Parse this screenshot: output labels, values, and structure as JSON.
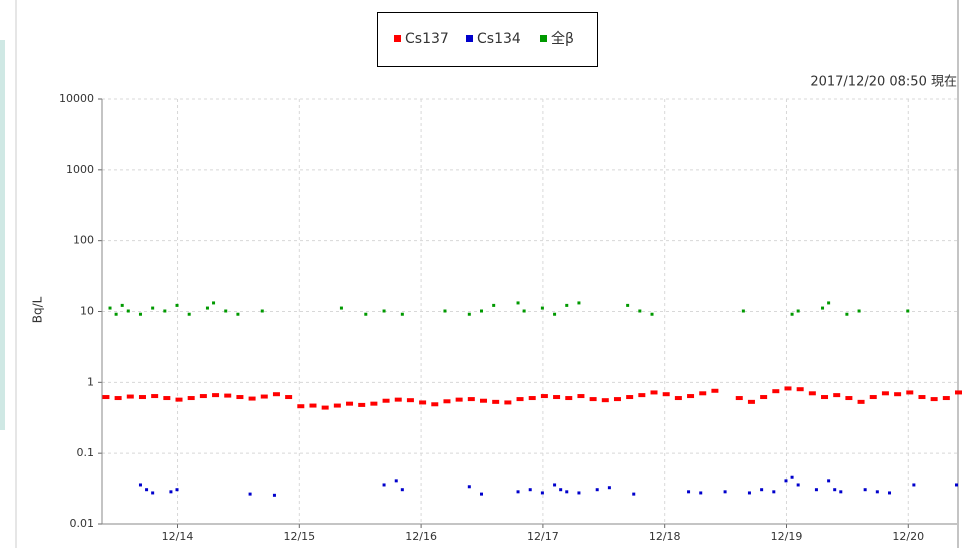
{
  "chart_data": {
    "type": "scatter",
    "annotation": "2017/12/20 08:50 現在",
    "y_label": "Bq/L",
    "log_y": true,
    "grid": true,
    "xlim": [
      13.38,
      20.4
    ],
    "ylim": [
      0.01,
      10000
    ],
    "xticks": [
      {
        "value": 14,
        "label": "12/14"
      },
      {
        "value": 15,
        "label": "12/15"
      },
      {
        "value": 16,
        "label": "12/16"
      },
      {
        "value": 17,
        "label": "12/17"
      },
      {
        "value": 18,
        "label": "12/18"
      },
      {
        "value": 19,
        "label": "12/19"
      },
      {
        "value": 20,
        "label": "12/20"
      }
    ],
    "yticks": [
      0.01,
      0.1,
      1,
      10,
      100,
      1000,
      10000
    ],
    "series": [
      {
        "name": "Cs137",
        "color": "#ff0000",
        "x": [
          13.4,
          13.5,
          13.6,
          13.7,
          13.8,
          13.9,
          14.0,
          14.1,
          14.2,
          14.3,
          14.4,
          14.5,
          14.6,
          14.7,
          14.8,
          14.9,
          15.0,
          15.1,
          15.2,
          15.3,
          15.4,
          15.5,
          15.6,
          15.7,
          15.8,
          15.9,
          16.0,
          16.1,
          16.2,
          16.3,
          16.4,
          16.5,
          16.6,
          16.7,
          16.8,
          16.9,
          17.0,
          17.1,
          17.2,
          17.3,
          17.4,
          17.5,
          17.6,
          17.7,
          17.8,
          17.9,
          18.0,
          18.1,
          18.2,
          18.3,
          18.4,
          18.5,
          18.6,
          18.7,
          18.8,
          18.9,
          19.0,
          19.1,
          19.2,
          19.3,
          19.4,
          19.5,
          19.6,
          19.7,
          19.8,
          19.9,
          20.0,
          20.1,
          20.2,
          20.3,
          20.4
        ],
        "values": [
          0.62,
          0.6,
          0.63,
          0.62,
          0.64,
          0.6,
          0.57,
          0.6,
          0.64,
          0.66,
          0.65,
          0.62,
          0.59,
          0.63,
          0.68,
          0.62,
          0.46,
          0.47,
          0.44,
          0.47,
          0.5,
          0.48,
          0.5,
          0.55,
          0.57,
          0.56,
          0.52,
          0.49,
          0.54,
          0.57,
          0.58,
          0.55,
          0.53,
          0.52,
          0.58,
          0.6,
          0.64,
          0.62,
          0.6,
          0.64,
          0.58,
          0.56,
          0.58,
          0.62,
          0.66,
          0.72,
          0.68,
          0.6,
          0.64,
          0.7,
          0.76,
          null,
          0.6,
          0.53,
          0.62,
          0.75,
          0.82,
          0.8,
          0.7,
          0.62,
          0.66,
          0.6,
          0.53,
          0.62,
          0.7,
          0.68,
          0.72,
          0.62,
          0.58,
          0.6,
          0.72
        ]
      },
      {
        "name": "Cs134",
        "color": "#0000cc",
        "x": [
          13.7,
          13.75,
          13.8,
          13.95,
          14.0,
          14.6,
          14.8,
          15.7,
          15.8,
          15.85,
          16.4,
          16.5,
          16.8,
          16.9,
          17.0,
          17.1,
          17.15,
          17.2,
          17.3,
          17.45,
          17.55,
          17.75,
          18.2,
          18.3,
          18.5,
          18.7,
          18.8,
          18.9,
          19.0,
          19.05,
          19.1,
          19.25,
          19.35,
          19.4,
          19.45,
          19.65,
          19.75,
          19.85,
          20.05,
          20.4
        ],
        "values": [
          0.035,
          0.03,
          0.027,
          0.028,
          0.03,
          0.026,
          0.025,
          0.035,
          0.04,
          0.03,
          0.033,
          0.026,
          0.028,
          0.03,
          0.027,
          0.035,
          0.03,
          0.028,
          0.027,
          0.03,
          0.032,
          0.026,
          0.028,
          0.027,
          0.028,
          0.027,
          0.03,
          0.028,
          0.04,
          0.045,
          0.035,
          0.03,
          0.04,
          0.03,
          0.028,
          0.03,
          0.028,
          0.027,
          0.035,
          0.035
        ]
      },
      {
        "name": "全β",
        "color": "#009900",
        "x": [
          13.45,
          13.5,
          13.55,
          13.6,
          13.7,
          13.8,
          13.9,
          14.0,
          14.1,
          14.25,
          14.3,
          14.4,
          14.5,
          14.7,
          15.35,
          15.55,
          15.7,
          15.85,
          16.2,
          16.4,
          16.5,
          16.6,
          16.8,
          16.85,
          17.0,
          17.1,
          17.2,
          17.3,
          17.7,
          17.8,
          17.9,
          18.65,
          19.05,
          19.1,
          19.3,
          19.35,
          19.5,
          19.6,
          20.0
        ],
        "values": [
          11,
          9,
          12,
          10,
          9,
          11,
          10,
          12,
          9,
          11,
          13,
          10,
          9,
          10,
          11,
          9,
          10,
          9,
          10,
          9,
          10,
          12,
          13,
          10,
          11,
          9,
          12,
          13,
          12,
          10,
          9,
          10,
          9,
          10,
          11,
          13,
          9,
          10,
          10
        ]
      }
    ]
  }
}
